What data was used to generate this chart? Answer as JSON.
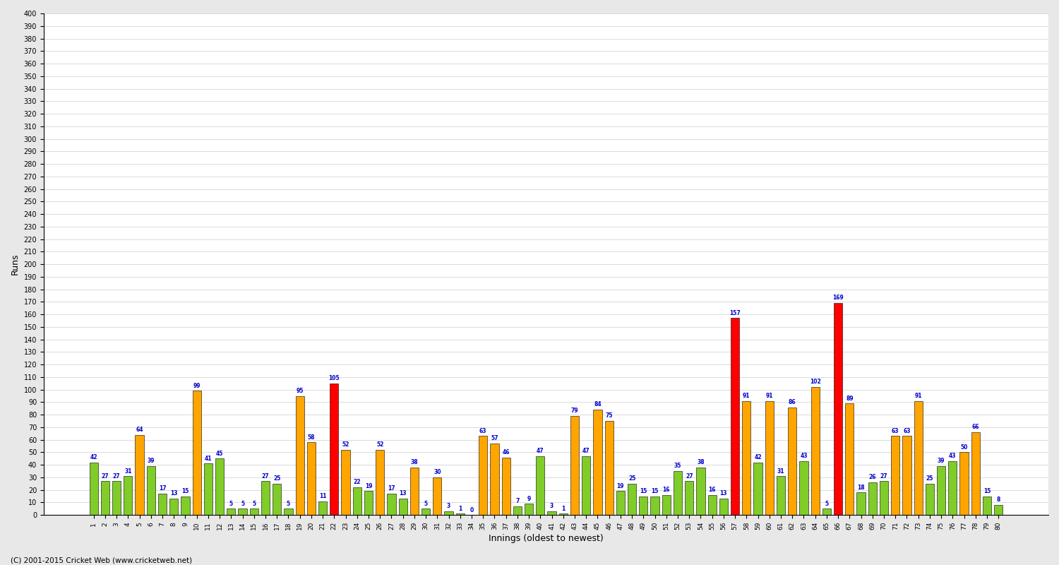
{
  "xlabel": "Innings (oldest to newest)",
  "ylabel": "Runs",
  "footer": "(C) 2001-2015 Cricket Web (www.cricketweb.net)",
  "ylim": [
    0,
    400
  ],
  "bar_data": [
    {
      "inning": "1",
      "score": 42,
      "color": "green"
    },
    {
      "inning": "2",
      "score": 27,
      "color": "green"
    },
    {
      "inning": "3",
      "score": 27,
      "color": "green"
    },
    {
      "inning": "4",
      "score": 31,
      "color": "green"
    },
    {
      "inning": "5",
      "score": 64,
      "color": "orange"
    },
    {
      "inning": "6",
      "score": 39,
      "color": "green"
    },
    {
      "inning": "7",
      "score": 17,
      "color": "green"
    },
    {
      "inning": "8",
      "score": 13,
      "color": "green"
    },
    {
      "inning": "9",
      "score": 15,
      "color": "green"
    },
    {
      "inning": "10",
      "score": 99,
      "color": "orange"
    },
    {
      "inning": "11",
      "score": 41,
      "color": "green"
    },
    {
      "inning": "12",
      "score": 45,
      "color": "green"
    },
    {
      "inning": "13",
      "score": 5,
      "color": "green"
    },
    {
      "inning": "14",
      "score": 5,
      "color": "green"
    },
    {
      "inning": "15",
      "score": 5,
      "color": "green"
    },
    {
      "inning": "16",
      "score": 27,
      "color": "green"
    },
    {
      "inning": "17",
      "score": 25,
      "color": "green"
    },
    {
      "inning": "18",
      "score": 5,
      "color": "green"
    },
    {
      "inning": "19",
      "score": 95,
      "color": "orange"
    },
    {
      "inning": "20",
      "score": 58,
      "color": "orange"
    },
    {
      "inning": "21",
      "score": 11,
      "color": "green"
    },
    {
      "inning": "22",
      "score": 105,
      "color": "red"
    },
    {
      "inning": "23",
      "score": 52,
      "color": "orange"
    },
    {
      "inning": "24",
      "score": 22,
      "color": "green"
    },
    {
      "inning": "25",
      "score": 19,
      "color": "green"
    },
    {
      "inning": "26",
      "score": 52,
      "color": "orange"
    },
    {
      "inning": "27",
      "score": 17,
      "color": "green"
    },
    {
      "inning": "28",
      "score": 13,
      "color": "green"
    },
    {
      "inning": "29",
      "score": 38,
      "color": "orange"
    },
    {
      "inning": "30",
      "score": 5,
      "color": "green"
    },
    {
      "inning": "31",
      "score": 30,
      "color": "orange"
    },
    {
      "inning": "32",
      "score": 3,
      "color": "green"
    },
    {
      "inning": "33",
      "score": 1,
      "color": "green"
    },
    {
      "inning": "34",
      "score": 0,
      "color": "green"
    },
    {
      "inning": "35",
      "score": 63,
      "color": "orange"
    },
    {
      "inning": "36",
      "score": 57,
      "color": "orange"
    },
    {
      "inning": "37",
      "score": 46,
      "color": "orange"
    },
    {
      "inning": "38",
      "score": 7,
      "color": "green"
    },
    {
      "inning": "39",
      "score": 9,
      "color": "green"
    },
    {
      "inning": "40",
      "score": 47,
      "color": "green"
    },
    {
      "inning": "41",
      "score": 3,
      "color": "green"
    },
    {
      "inning": "42",
      "score": 1,
      "color": "green"
    },
    {
      "inning": "43",
      "score": 79,
      "color": "orange"
    },
    {
      "inning": "44",
      "score": 47,
      "color": "green"
    },
    {
      "inning": "45",
      "score": 84,
      "color": "orange"
    },
    {
      "inning": "46",
      "score": 75,
      "color": "orange"
    },
    {
      "inning": "47",
      "score": 19,
      "color": "green"
    },
    {
      "inning": "48",
      "score": 25,
      "color": "green"
    },
    {
      "inning": "49",
      "score": 15,
      "color": "green"
    },
    {
      "inning": "50",
      "score": 15,
      "color": "green"
    },
    {
      "inning": "51",
      "score": 16,
      "color": "green"
    },
    {
      "inning": "52",
      "score": 35,
      "color": "green"
    },
    {
      "inning": "53",
      "score": 27,
      "color": "green"
    },
    {
      "inning": "54",
      "score": 38,
      "color": "green"
    },
    {
      "inning": "55",
      "score": 16,
      "color": "green"
    },
    {
      "inning": "56",
      "score": 13,
      "color": "green"
    },
    {
      "inning": "57",
      "score": 157,
      "color": "red"
    },
    {
      "inning": "58",
      "score": 91,
      "color": "orange"
    },
    {
      "inning": "59",
      "score": 42,
      "color": "green"
    },
    {
      "inning": "60",
      "score": 91,
      "color": "orange"
    },
    {
      "inning": "61",
      "score": 31,
      "color": "green"
    },
    {
      "inning": "62",
      "score": 86,
      "color": "orange"
    },
    {
      "inning": "63",
      "score": 43,
      "color": "green"
    },
    {
      "inning": "64",
      "score": 102,
      "color": "orange"
    },
    {
      "inning": "65",
      "score": 5,
      "color": "green"
    },
    {
      "inning": "66",
      "score": 169,
      "color": "red"
    },
    {
      "inning": "67",
      "score": 89,
      "color": "orange"
    },
    {
      "inning": "68",
      "score": 18,
      "color": "green"
    },
    {
      "inning": "69",
      "score": 26,
      "color": "green"
    },
    {
      "inning": "70",
      "score": 27,
      "color": "green"
    },
    {
      "inning": "71",
      "score": 63,
      "color": "orange"
    },
    {
      "inning": "72",
      "score": 63,
      "color": "orange"
    },
    {
      "inning": "73",
      "score": 91,
      "color": "orange"
    },
    {
      "inning": "74",
      "score": 25,
      "color": "green"
    },
    {
      "inning": "75",
      "score": 39,
      "color": "green"
    },
    {
      "inning": "76",
      "score": 43,
      "color": "green"
    },
    {
      "inning": "77",
      "score": 50,
      "color": "orange"
    },
    {
      "inning": "78",
      "score": 66,
      "color": "orange"
    },
    {
      "inning": "79",
      "score": 15,
      "color": "green"
    },
    {
      "inning": "80",
      "score": 8,
      "color": "green"
    }
  ],
  "color_orange": "#FFA500",
  "color_green": "#80CC28",
  "color_red": "#FF0000",
  "label_color": "#0000CC",
  "bg_color": "#E8E8E8",
  "plot_bg": "#FFFFFF",
  "grid_color": "#CCCCCC"
}
